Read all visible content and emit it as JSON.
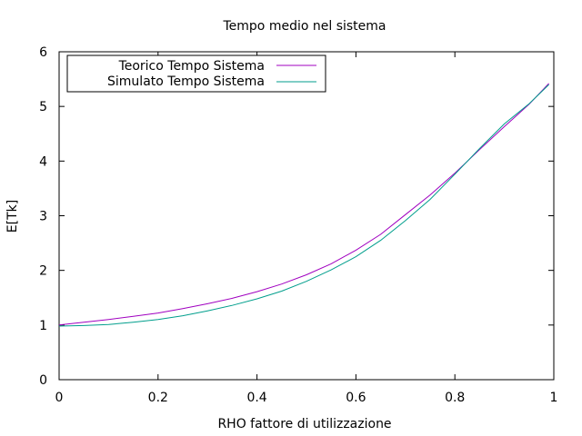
{
  "chart_data": {
    "type": "line",
    "title": "Tempo medio nel sistema",
    "xlabel": "RHO fattore di utilizzazione",
    "ylabel": "E[Tk]",
    "xlim": [
      0,
      1
    ],
    "ylim": [
      0,
      6
    ],
    "xticks": [
      0,
      0.2,
      0.4,
      0.6,
      0.8,
      1
    ],
    "xtick_labels": [
      "0",
      "0.2",
      "0.4",
      "0.6",
      "0.8",
      "1"
    ],
    "yticks": [
      0,
      1,
      2,
      3,
      4,
      5,
      6
    ],
    "ytick_labels": [
      "0",
      "1",
      "2",
      "3",
      "4",
      "5",
      "6"
    ],
    "grid": false,
    "legend_position": "top-left",
    "series": [
      {
        "name": "Teorico Tempo Sistema",
        "color": "#a000c0",
        "x": [
          0,
          0.05,
          0.1,
          0.15,
          0.2,
          0.25,
          0.3,
          0.35,
          0.4,
          0.45,
          0.5,
          0.55,
          0.6,
          0.65,
          0.7,
          0.75,
          0.8,
          0.85,
          0.9,
          0.95,
          0.99
        ],
        "y": [
          1.0,
          1.05,
          1.1,
          1.16,
          1.22,
          1.3,
          1.39,
          1.49,
          1.61,
          1.75,
          1.92,
          2.12,
          2.37,
          2.66,
          3.02,
          3.38,
          3.78,
          4.21,
          4.63,
          5.04,
          5.42
        ]
      },
      {
        "name": "Simulato Tempo Sistema",
        "color": "#009e8c",
        "x": [
          0,
          0.05,
          0.1,
          0.15,
          0.2,
          0.25,
          0.3,
          0.35,
          0.4,
          0.45,
          0.5,
          0.55,
          0.6,
          0.65,
          0.7,
          0.75,
          0.8,
          0.85,
          0.9,
          0.95,
          0.99
        ],
        "y": [
          0.98,
          0.99,
          1.01,
          1.05,
          1.1,
          1.17,
          1.26,
          1.36,
          1.48,
          1.62,
          1.8,
          2.01,
          2.25,
          2.55,
          2.91,
          3.3,
          3.76,
          4.23,
          4.68,
          5.05,
          5.4
        ]
      }
    ]
  }
}
